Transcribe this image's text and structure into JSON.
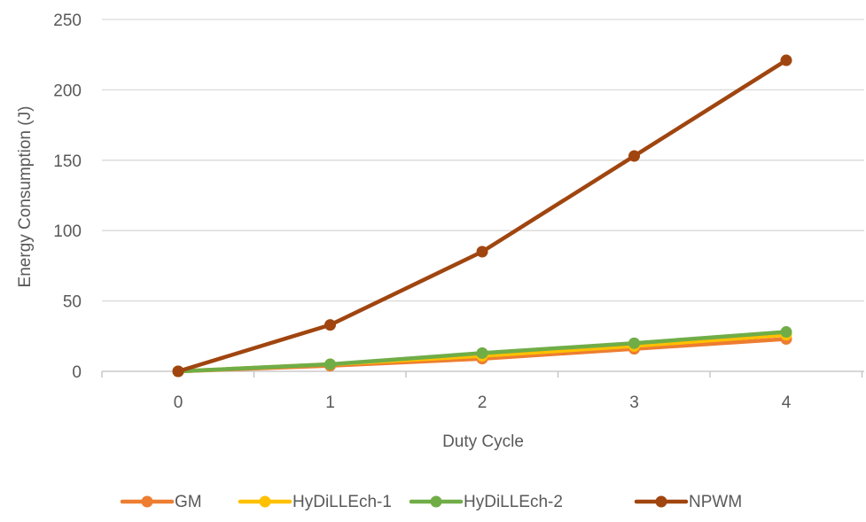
{
  "chart_data": {
    "type": "line",
    "title": "",
    "xlabel": "Duty Cycle",
    "ylabel": "Energy Consumption (J)",
    "x": [
      0,
      1,
      2,
      3,
      4
    ],
    "x_ticks": [
      "0",
      "1",
      "2",
      "3",
      "4"
    ],
    "ylim": [
      0,
      250
    ],
    "y_ticks": [
      "0",
      "50",
      "100",
      "150",
      "200",
      "250"
    ],
    "grid": "horizontal",
    "legend_position": "bottom",
    "series": [
      {
        "name": "GM",
        "color": "#ED7D31",
        "values": [
          0,
          4,
          9,
          16,
          23
        ]
      },
      {
        "name": "HyDiLLEch-1",
        "color": "#FFC000",
        "values": [
          0,
          5,
          11,
          18,
          26
        ]
      },
      {
        "name": "HyDiLLEch-2",
        "color": "#70AD47",
        "values": [
          0,
          5,
          13,
          20,
          28
        ]
      },
      {
        "name": "NPWM",
        "color": "#A0450F",
        "values": [
          0,
          33,
          85,
          153,
          221
        ]
      }
    ]
  }
}
